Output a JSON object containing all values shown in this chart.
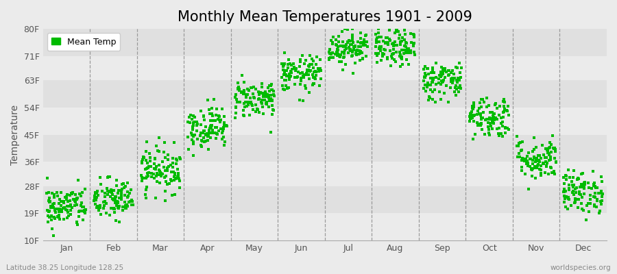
{
  "title": "Monthly Mean Temperatures 1901 - 2009",
  "ylabel": "Temperature",
  "ytick_labels": [
    "10F",
    "19F",
    "28F",
    "36F",
    "45F",
    "54F",
    "63F",
    "71F",
    "80F"
  ],
  "ytick_values": [
    10,
    19,
    28,
    36,
    45,
    54,
    63,
    71,
    80
  ],
  "ylim": [
    10,
    80
  ],
  "months": [
    "Jan",
    "Feb",
    "Mar",
    "Apr",
    "May",
    "Jun",
    "Jul",
    "Aug",
    "Sep",
    "Oct",
    "Nov",
    "Dec"
  ],
  "month_centers": [
    0.5,
    1.5,
    2.5,
    3.5,
    4.5,
    5.5,
    6.5,
    7.5,
    8.5,
    9.5,
    10.5,
    11.5
  ],
  "scatter_color": "#00bb00",
  "background_color": "#ebebeb",
  "plot_bg_color": "#ebebeb",
  "band_colors": [
    "#e0e0e0",
    "#ebebeb"
  ],
  "legend_label": "Mean Temp",
  "footnote_left": "Latitude 38.25 Longitude 128.25",
  "footnote_right": "worldspecies.org",
  "title_fontsize": 15,
  "axis_label_fontsize": 10,
  "tick_fontsize": 9,
  "marker_size": 9,
  "monthly_mean_temps_F": [
    21.0,
    23.5,
    33.5,
    47.5,
    57.0,
    65.0,
    74.0,
    73.5,
    63.0,
    51.0,
    37.0,
    26.0
  ],
  "monthly_std_F": [
    3.5,
    3.5,
    3.8,
    3.5,
    3.2,
    3.0,
    3.0,
    3.0,
    3.2,
    3.5,
    3.5,
    3.5
  ],
  "n_years": 109,
  "seed": 42
}
